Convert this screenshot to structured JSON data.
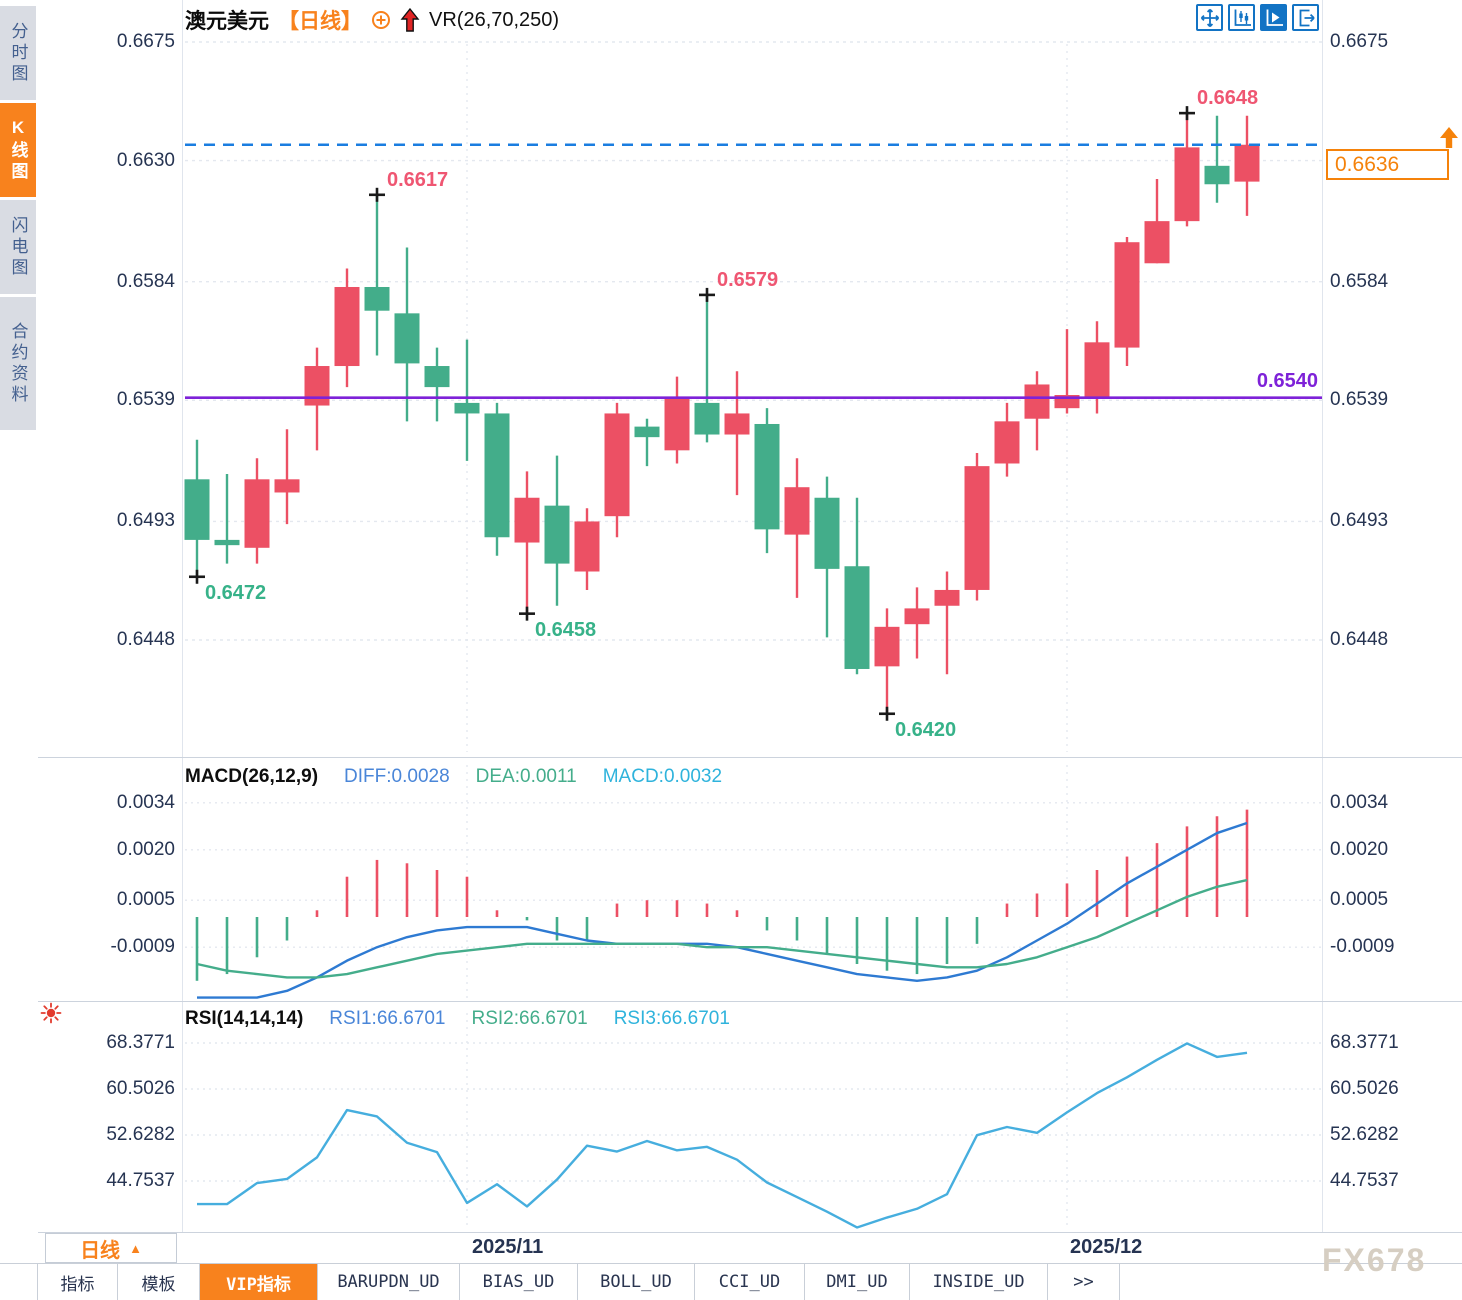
{
  "app": {
    "watermark": "FX678"
  },
  "sidebar": {
    "items": [
      {
        "label": "分时图",
        "active": false
      },
      {
        "label": "K线图",
        "active": true
      },
      {
        "label": "闪电图",
        "active": false
      },
      {
        "label": "合约资料",
        "active": false
      }
    ]
  },
  "header": {
    "symbol": "澳元美元",
    "period": "【日线】",
    "indicator": "VR(26,70,250)"
  },
  "toolbar": {
    "buttons": [
      {
        "name": "pan-crosshair",
        "active": false
      },
      {
        "name": "axis-candle",
        "active": false
      },
      {
        "name": "axis-play",
        "active": true
      },
      {
        "name": "exit-right",
        "active": false
      }
    ]
  },
  "footer": {
    "timeframe_button": {
      "label": "日线",
      "arrow": "▲"
    },
    "date_labels": [
      "2025/11",
      "2025/12"
    ],
    "tabs": [
      {
        "label": "指标",
        "active": false
      },
      {
        "label": "模板",
        "active": false
      },
      {
        "label": "VIP指标",
        "active": true
      },
      {
        "label": "BARUPDN_UD",
        "active": false
      },
      {
        "label": "BIAS_UD",
        "active": false
      },
      {
        "label": "BOLL_UD",
        "active": false
      },
      {
        "label": "CCI_UD",
        "active": false
      },
      {
        "label": "DMI_UD",
        "active": false
      },
      {
        "label": "INSIDE_UD",
        "active": false
      },
      {
        "label": ">>",
        "active": false
      }
    ]
  },
  "chart_data": {
    "type": "candlestick",
    "title": "澳元美元 日线 (AUD/USD Daily)",
    "colors": {
      "up": "#ec5064",
      "down": "#43ad8a",
      "diff_line": "#2e7ad2",
      "dea_line": "#44ad8b",
      "rsi_line": "#46aede",
      "current_price_line": "#1a7de0",
      "support_line": "#7e22d8",
      "grid": "#e4e8ef",
      "cross": "#1a1a1a"
    },
    "price_panel": {
      "ticks": [
        {
          "label": "0.6675",
          "value": 0.6675
        },
        {
          "label": "0.6630",
          "value": 0.663
        },
        {
          "label": "0.6584",
          "value": 0.6584
        },
        {
          "label": "0.6539",
          "value": 0.6539
        },
        {
          "label": "0.6493",
          "value": 0.6493
        },
        {
          "label": "0.6448",
          "value": 0.6448
        }
      ],
      "right_hidden_tick": "0.6630",
      "support_line": {
        "value": 0.654,
        "label": "0.6540"
      },
      "current_price": {
        "value": 0.6636,
        "label": "0.6636"
      },
      "high_annotations": [
        {
          "index": 7,
          "price": 0.6617,
          "label": "0.6617"
        },
        {
          "index": 18,
          "price": 0.6579,
          "label": "0.6579"
        },
        {
          "index": 34,
          "price": 0.6648,
          "label": "0.6648"
        }
      ],
      "low_annotations": [
        {
          "index": 1,
          "price": 0.6472,
          "label": "0.6472"
        },
        {
          "index": 12,
          "price": 0.6458,
          "label": "0.6458"
        },
        {
          "index": 24,
          "price": 0.642,
          "label": "0.6420"
        }
      ],
      "candles": [
        [
          0.6509,
          0.6524,
          0.6472,
          0.6486
        ],
        [
          0.6486,
          0.6511,
          0.6477,
          0.6484
        ],
        [
          0.6483,
          0.6517,
          0.6477,
          0.6509
        ],
        [
          0.6504,
          0.6528,
          0.6492,
          0.6509
        ],
        [
          0.6537,
          0.6559,
          0.652,
          0.6552
        ],
        [
          0.6552,
          0.6589,
          0.6544,
          0.6582
        ],
        [
          0.6582,
          0.6617,
          0.6556,
          0.6573
        ],
        [
          0.6572,
          0.6597,
          0.6531,
          0.6553
        ],
        [
          0.6552,
          0.6559,
          0.6531,
          0.6544
        ],
        [
          0.6538,
          0.6562,
          0.6516,
          0.6534
        ],
        [
          0.6534,
          0.6538,
          0.648,
          0.6487
        ],
        [
          0.6485,
          0.6512,
          0.6458,
          0.6502
        ],
        [
          0.6499,
          0.6518,
          0.6461,
          0.6477
        ],
        [
          0.6474,
          0.6498,
          0.6467,
          0.6493
        ],
        [
          0.6495,
          0.6538,
          0.6487,
          0.6534
        ],
        [
          0.6529,
          0.6532,
          0.6514,
          0.6525
        ],
        [
          0.652,
          0.6548,
          0.6515,
          0.654
        ],
        [
          0.6538,
          0.6579,
          0.6523,
          0.6526
        ],
        [
          0.6526,
          0.655,
          0.6503,
          0.6534
        ],
        [
          0.653,
          0.6536,
          0.6481,
          0.649
        ],
        [
          0.6488,
          0.6517,
          0.6464,
          0.6506
        ],
        [
          0.6502,
          0.651,
          0.6449,
          0.6475
        ],
        [
          0.6476,
          0.6502,
          0.6435,
          0.6437
        ],
        [
          0.6438,
          0.646,
          0.642,
          0.6453
        ],
        [
          0.6454,
          0.6468,
          0.6441,
          0.646
        ],
        [
          0.6461,
          0.6474,
          0.6435,
          0.6467
        ],
        [
          0.6467,
          0.6519,
          0.6463,
          0.6514
        ],
        [
          0.6515,
          0.6538,
          0.651,
          0.6531
        ],
        [
          0.6532,
          0.655,
          0.652,
          0.6545
        ],
        [
          0.6536,
          0.6566,
          0.6534,
          0.6541
        ],
        [
          0.654,
          0.6569,
          0.6534,
          0.6561
        ],
        [
          0.6559,
          0.6601,
          0.6552,
          0.6599
        ],
        [
          0.6591,
          0.6623,
          0.6591,
          0.6607
        ],
        [
          0.6607,
          0.6648,
          0.6605,
          0.6635
        ],
        [
          0.6628,
          0.6647,
          0.6614,
          0.6621
        ],
        [
          0.6622,
          0.6647,
          0.6609,
          0.6636
        ]
      ]
    },
    "macd_panel": {
      "title": "MACD(26,12,9)",
      "diff_label": "DIFF:0.0028",
      "dea_label": "DEA:0.0011",
      "macd_label": "MACD:0.0032",
      "ticks": [
        {
          "label": "0.0034",
          "value": 0.0034
        },
        {
          "label": "0.0020",
          "value": 0.002
        },
        {
          "label": "0.0005",
          "value": 0.0005
        },
        {
          "label": "-0.0009",
          "value": -0.0009
        }
      ],
      "histogram": [
        -0.0019,
        -0.0017,
        -0.0012,
        -0.0007,
        0.0002,
        0.0012,
        0.0017,
        0.0016,
        0.0014,
        0.0012,
        0.0002,
        -0.0001,
        -0.0007,
        -0.0007,
        0.0004,
        0.0005,
        0.0005,
        0.0004,
        0.0002,
        -0.0004,
        -0.0007,
        -0.0011,
        -0.0014,
        -0.0016,
        -0.0017,
        -0.0014,
        -0.0008,
        0.0004,
        0.0007,
        0.001,
        0.0014,
        0.0018,
        0.0022,
        0.0027,
        0.003,
        0.0032
      ],
      "diff": [
        -0.0024,
        -0.0024,
        -0.0024,
        -0.0022,
        -0.0018,
        -0.0013,
        -0.0009,
        -0.0006,
        -0.0004,
        -0.0003,
        -0.0003,
        -0.0003,
        -0.0005,
        -0.0007,
        -0.0008,
        -0.0008,
        -0.0008,
        -0.0008,
        -0.0009,
        -0.0011,
        -0.0013,
        -0.0015,
        -0.0017,
        -0.0018,
        -0.0019,
        -0.0018,
        -0.0016,
        -0.0012,
        -0.0007,
        -0.0002,
        0.0004,
        0.001,
        0.0015,
        0.002,
        0.0025,
        0.0028
      ],
      "dea": [
        -0.0014,
        -0.0016,
        -0.0017,
        -0.0018,
        -0.0018,
        -0.0017,
        -0.0015,
        -0.0013,
        -0.0011,
        -0.001,
        -0.0009,
        -0.0008,
        -0.0008,
        -0.0008,
        -0.0008,
        -0.0008,
        -0.0008,
        -0.0009,
        -0.0009,
        -0.0009,
        -0.001,
        -0.0011,
        -0.0012,
        -0.0013,
        -0.0014,
        -0.0015,
        -0.0015,
        -0.0014,
        -0.0012,
        -0.0009,
        -0.0006,
        -0.0002,
        0.0002,
        0.0006,
        0.0009,
        0.0011
      ]
    },
    "rsi_panel": {
      "title": "RSI(14,14,14)",
      "labels": [
        "RSI1:66.6701",
        "RSI2:66.6701",
        "RSI3:66.6701"
      ],
      "ticks": [
        {
          "label": "68.3771",
          "value": 68.3771
        },
        {
          "label": "60.5026",
          "value": 60.5026
        },
        {
          "label": "52.6282",
          "value": 52.6282
        },
        {
          "label": "44.7537",
          "value": 44.7537
        }
      ],
      "values": [
        40.8,
        40.8,
        44.4,
        45.1,
        48.8,
        56.9,
        55.8,
        51.3,
        49.7,
        41.0,
        44.2,
        40.4,
        45.0,
        50.8,
        49.8,
        51.6,
        50.0,
        50.6,
        48.4,
        44.5,
        42.0,
        39.5,
        36.8,
        38.5,
        40.0,
        42.5,
        52.6,
        54.0,
        53.0,
        56.5,
        59.8,
        62.5,
        65.5,
        68.3,
        66.0,
        66.7
      ]
    },
    "month_gridline_indices": [
      9,
      29
    ]
  }
}
